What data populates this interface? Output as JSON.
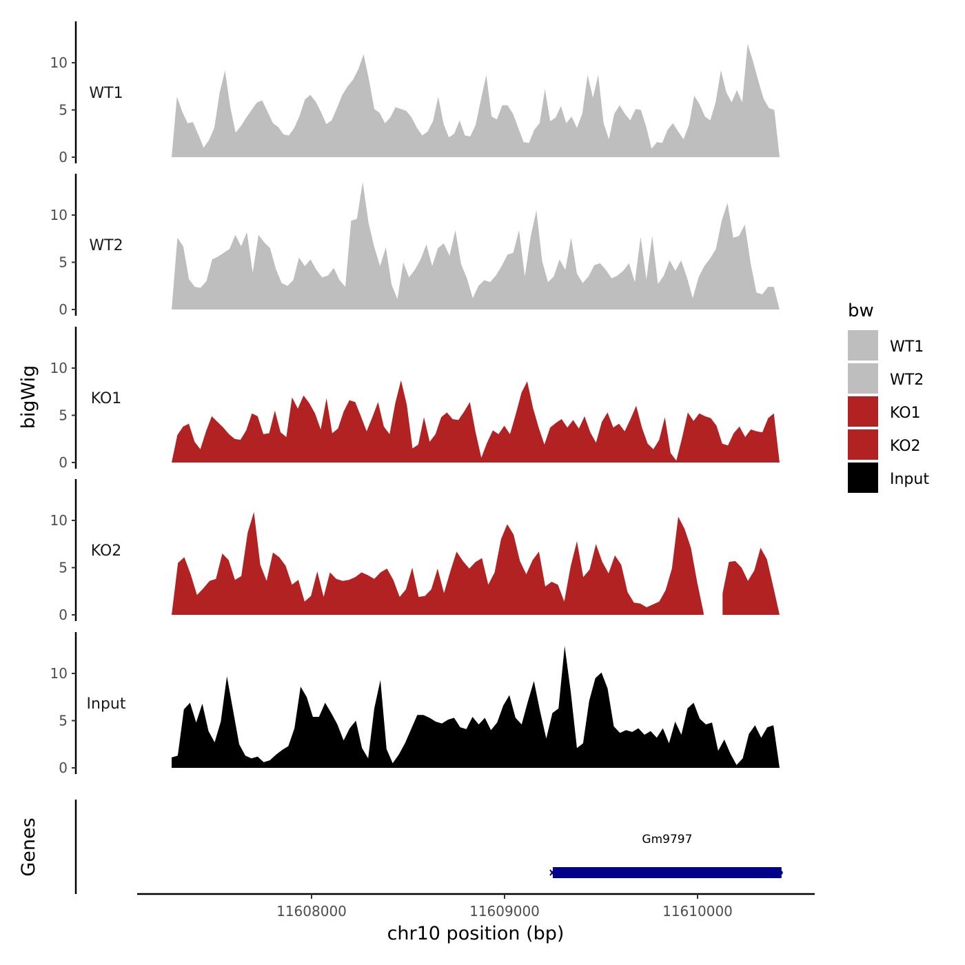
{
  "chart_data": {
    "type": "area",
    "subtype": "genome-browser-coverage-tracks",
    "ylabel": "bigWig",
    "xlabel": "chr10 position (bp)",
    "xlim": [
      11607100,
      11610600
    ],
    "x_ticks": [
      11608000,
      11609000,
      11610000
    ],
    "x_tick_labels": [
      "11608000",
      "11609000",
      "11610000"
    ],
    "ylim": [
      0,
      14
    ],
    "y_ticks": [
      0,
      5,
      10
    ],
    "y_tick_labels": [
      "0",
      "5",
      "10"
    ],
    "series_x_range": [
      11607275,
      11610425
    ],
    "series": [
      {
        "name": "WT1",
        "color": "#BEBEBE",
        "values": [
          0,
          6.4,
          4.8,
          3.6,
          3.7,
          2.4,
          1.0,
          1.8,
          3.1,
          6.8,
          9.2,
          5.3,
          2.6,
          3.3,
          4.2,
          5.0,
          5.8,
          6.0,
          4.8,
          3.6,
          3.2,
          2.4,
          2.3,
          3.1,
          4.4,
          6.1,
          6.6,
          5.9,
          4.8,
          3.5,
          3.9,
          5.2,
          6.6,
          7.5,
          8.2,
          9.3,
          10.9,
          8.2,
          5.1,
          4.7,
          3.6,
          4.2,
          5.3,
          5.1,
          4.9,
          4.2,
          3.1,
          2.3,
          2.7,
          3.8,
          6.4,
          3.5,
          2.1,
          2.5,
          3.9,
          2.3,
          2.2,
          3.4,
          6.1,
          8.7,
          4.3,
          4.0,
          5.5,
          5.5,
          4.6,
          3.1,
          1.6,
          1.5,
          2.9,
          3.6,
          7.2,
          3.8,
          4.2,
          5.4,
          3.6,
          4.3,
          3.1,
          4.6,
          8.7,
          6.3,
          8.7,
          3.6,
          1.9,
          4.6,
          5.5,
          4.6,
          3.9,
          5.1,
          5.0,
          3.2,
          0.9,
          1.6,
          1.5,
          2.9,
          3.6,
          2.7,
          1.9,
          3.4,
          6.5,
          5.6,
          4.3,
          3.9,
          5.8,
          9.2,
          6.9,
          5.8,
          7.1,
          5.8,
          12.0,
          10.2,
          8.1,
          6.2,
          5.2,
          5.0,
          0
        ]
      },
      {
        "name": "WT2",
        "color": "#BEBEBE",
        "values": [
          0,
          7.6,
          6.7,
          3.2,
          2.4,
          2.3,
          3.0,
          5.3,
          5.6,
          6.0,
          6.4,
          7.9,
          6.7,
          8.2,
          3.9,
          7.9,
          7.1,
          6.5,
          4.3,
          2.8,
          2.5,
          3.1,
          5.5,
          4.6,
          5.3,
          4.2,
          3.4,
          3.6,
          4.4,
          3.1,
          2.4,
          9.4,
          9.6,
          13.5,
          9.2,
          6.6,
          4.6,
          6.6,
          2.6,
          1.1,
          5.0,
          3.4,
          4.2,
          5.3,
          6.9,
          4.6,
          6.5,
          7.0,
          5.7,
          8.4,
          4.8,
          3.3,
          1.2,
          2.5,
          3.1,
          2.9,
          3.6,
          4.6,
          5.8,
          6.0,
          8.4,
          3.5,
          7.7,
          10.5,
          5.1,
          2.9,
          3.5,
          5.3,
          4.2,
          7.6,
          3.8,
          2.8,
          3.5,
          4.7,
          4.9,
          4.2,
          3.3,
          3.6,
          4.1,
          4.9,
          2.9,
          7.7,
          3.2,
          7.8,
          2.7,
          3.6,
          5.2,
          4.1,
          5.2,
          3.4,
          1.2,
          3.4,
          4.6,
          5.4,
          6.4,
          9.4,
          11.3,
          7.6,
          7.8,
          9.0,
          4.9,
          1.8,
          1.6,
          2.4,
          2.4,
          0
        ]
      },
      {
        "name": "KO1",
        "color": "#B22222",
        "values": [
          0,
          2.9,
          3.8,
          4.1,
          2.2,
          1.4,
          3.3,
          4.9,
          4.3,
          3.7,
          3.0,
          2.5,
          2.4,
          3.4,
          5.2,
          4.9,
          3.0,
          3.1,
          5.5,
          3.2,
          2.7,
          6.9,
          5.7,
          7.1,
          6.3,
          5.2,
          3.5,
          6.8,
          3.1,
          3.6,
          5.4,
          6.6,
          6.4,
          4.9,
          3.3,
          4.8,
          6.4,
          3.8,
          3.0,
          6.3,
          8.7,
          6.1,
          1.5,
          1.9,
          4.8,
          2.2,
          3.0,
          4.8,
          5.3,
          4.6,
          4.5,
          5.4,
          6.4,
          3.2,
          0.5,
          2.1,
          3.4,
          3.0,
          3.9,
          3.0,
          5.1,
          7.4,
          8.6,
          5.8,
          3.7,
          1.9,
          3.7,
          4.2,
          4.6,
          3.7,
          4.5,
          3.6,
          4.9,
          3.2,
          2.1,
          4.3,
          5.3,
          3.7,
          4.1,
          3.3,
          4.6,
          6.0,
          3.7,
          2.0,
          1.4,
          2.4,
          4.8,
          1.0,
          0.2,
          2.6,
          5.3,
          4.4,
          5.2,
          4.9,
          4.7,
          3.9,
          2.0,
          1.8,
          3.1,
          3.8,
          2.7,
          3.5,
          3.3,
          3.2,
          4.7,
          5.2,
          0
        ]
      },
      {
        "name": "KO2",
        "color": "#B22222",
        "values": [
          0,
          5.5,
          6.1,
          4.3,
          2.1,
          2.8,
          3.6,
          3.8,
          6.5,
          5.8,
          3.7,
          4.1,
          8.7,
          10.9,
          5.3,
          3.6,
          6.6,
          6.1,
          5.2,
          3.2,
          3.7,
          1.4,
          2.0,
          4.6,
          1.9,
          4.5,
          3.8,
          3.6,
          3.7,
          4.0,
          4.5,
          4.2,
          3.8,
          4.5,
          4.9,
          3.7,
          1.9,
          2.7,
          5.0,
          1.9,
          2.0,
          2.7,
          4.9,
          2.3,
          4.6,
          6.7,
          5.7,
          4.9,
          5.6,
          6.0,
          3.2,
          4.5,
          8.0,
          9.6,
          8.5,
          5.7,
          4.3,
          5.8,
          6.7,
          3.0,
          3.5,
          3.2,
          1.4,
          5.1,
          7.8,
          4.0,
          4.8,
          7.5,
          5.6,
          4.4,
          6.3,
          5.3,
          2.4,
          1.3,
          1.2,
          0.8,
          1.1,
          1.4,
          2.6,
          4.9,
          10.4,
          9.1,
          7.1,
          3.4,
          0.2,
          null,
          null,
          2.3,
          5.6,
          5.7,
          5.0,
          3.6,
          4.7,
          7.1,
          5.9,
          3.0,
          0
        ]
      },
      {
        "name": "Input",
        "color": "#000000",
        "values": [
          1.1,
          1.3,
          6.2,
          6.9,
          4.8,
          6.8,
          3.9,
          2.7,
          4.9,
          9.7,
          6.1,
          2.5,
          1.3,
          1.0,
          1.2,
          0.6,
          0.8,
          1.4,
          1.9,
          2.3,
          4.2,
          8.6,
          7.5,
          5.4,
          5.4,
          6.9,
          5.8,
          4.6,
          2.9,
          4.2,
          5.0,
          2.1,
          1.0,
          6.3,
          9.3,
          2.0,
          0.5,
          1.4,
          2.6,
          4.1,
          5.6,
          5.6,
          5.3,
          4.9,
          4.7,
          5.1,
          5.3,
          4.3,
          4.1,
          5.4,
          4.6,
          5.3,
          4.0,
          4.8,
          6.6,
          7.7,
          5.3,
          4.6,
          7.0,
          9.2,
          6.0,
          3.1,
          5.8,
          6.3,
          12.9,
          8.0,
          2.1,
          2.6,
          7.1,
          9.5,
          10.1,
          8.4,
          4.4,
          3.7,
          4.0,
          3.8,
          4.2,
          3.5,
          3.9,
          3.2,
          4.2,
          2.6,
          4.9,
          3.5,
          6.3,
          6.9,
          5.2,
          4.6,
          4.8,
          1.8,
          3.0,
          1.5,
          0.3,
          1.0,
          3.6,
          4.5,
          3.2,
          4.3,
          4.5,
          0
        ]
      }
    ],
    "legend": {
      "title": "bw",
      "entries": [
        {
          "label": "WT1",
          "color": "#BEBEBE"
        },
        {
          "label": "WT2",
          "color": "#BEBEBE"
        },
        {
          "label": "KO1",
          "color": "#B22222"
        },
        {
          "label": "KO2",
          "color": "#B22222"
        },
        {
          "label": "Input",
          "color": "#000000"
        }
      ],
      "position": "right"
    },
    "genes_track": {
      "title": "Genes",
      "genes": [
        {
          "name": "Gm9797",
          "start": 11609250,
          "end": 11610435,
          "strand": "-",
          "color": "#00008B"
        }
      ]
    }
  }
}
